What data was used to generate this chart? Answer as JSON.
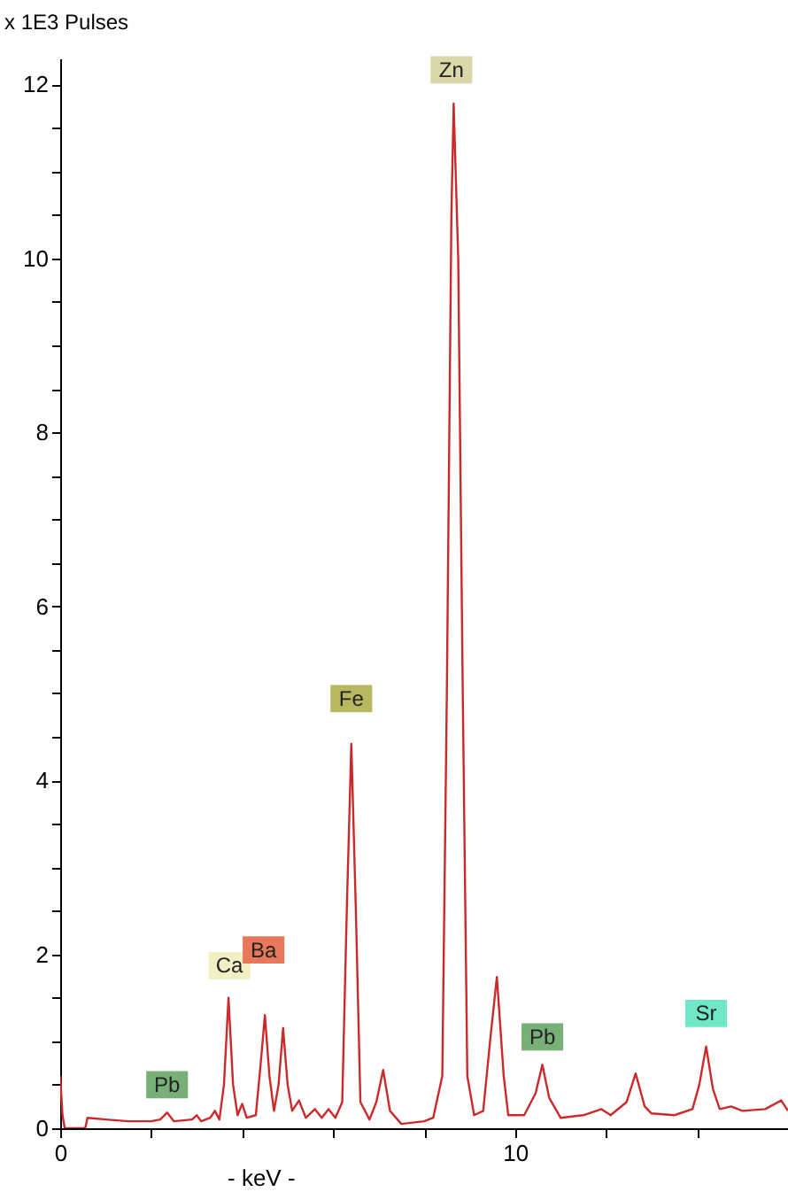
{
  "chart_data": {
    "type": "line",
    "ylabel": "x 1E3 Pulses",
    "xlabel": "- keV -",
    "x": [
      0,
      0.05,
      0.1,
      0.55,
      0.6,
      1.0,
      1.5,
      2.0,
      2.2,
      2.35,
      2.5,
      2.9,
      3.0,
      3.1,
      3.3,
      3.4,
      3.5,
      3.6,
      3.7,
      3.8,
      3.9,
      4.0,
      4.1,
      4.3,
      4.4,
      4.5,
      4.6,
      4.7,
      4.8,
      4.9,
      5.0,
      5.1,
      5.25,
      5.4,
      5.6,
      5.75,
      5.9,
      6.05,
      6.2,
      6.3,
      6.4,
      6.5,
      6.6,
      6.8,
      6.95,
      7.1,
      7.25,
      7.5,
      8.0,
      8.2,
      8.4,
      8.5,
      8.6,
      8.65,
      8.75,
      8.85,
      8.95,
      9.1,
      9.3,
      9.45,
      9.6,
      9.75,
      9.85,
      10.2,
      10.45,
      10.6,
      10.75,
      11.0,
      11.5,
      11.9,
      12.1,
      12.45,
      12.65,
      12.85,
      13.0,
      13.5,
      13.9,
      14.05,
      14.2,
      14.35,
      14.5,
      14.75,
      15.0,
      15.5,
      15.85,
      16.0
    ],
    "series": [
      {
        "color": "#cc2a2a",
        "values": [
          0.6,
          0.15,
          0.0,
          0.0,
          0.12,
          0.1,
          0.08,
          0.08,
          0.1,
          0.18,
          0.08,
          0.1,
          0.15,
          0.08,
          0.12,
          0.2,
          0.1,
          0.5,
          1.5,
          0.5,
          0.15,
          0.28,
          0.12,
          0.15,
          0.7,
          1.3,
          0.6,
          0.2,
          0.5,
          1.15,
          0.5,
          0.2,
          0.32,
          0.12,
          0.22,
          0.12,
          0.22,
          0.12,
          0.3,
          2.5,
          4.42,
          2.5,
          0.3,
          0.1,
          0.3,
          0.67,
          0.2,
          0.05,
          0.08,
          0.12,
          0.6,
          5.0,
          10.5,
          11.78,
          10.0,
          5.0,
          0.6,
          0.15,
          0.2,
          1.0,
          1.74,
          0.6,
          0.15,
          0.15,
          0.4,
          0.73,
          0.35,
          0.12,
          0.15,
          0.22,
          0.15,
          0.3,
          0.63,
          0.25,
          0.17,
          0.15,
          0.22,
          0.5,
          0.94,
          0.45,
          0.22,
          0.25,
          0.2,
          0.22,
          0.32,
          0.2
        ]
      }
    ],
    "xlim": [
      0,
      16
    ],
    "ylim": [
      0,
      12.3
    ],
    "xticks": [
      0,
      {
        "value": 2,
        "label": null
      },
      {
        "value": 4,
        "label": null
      },
      {
        "value": 6,
        "label": null
      },
      {
        "value": 8,
        "label": null
      },
      10,
      {
        "value": 12,
        "label": null
      },
      {
        "value": 14,
        "label": null
      },
      {
        "value": 16,
        "label": null
      }
    ],
    "yticks": [
      0,
      {
        "value": 0.5,
        "label": null
      },
      {
        "value": 1,
        "label": null
      },
      {
        "value": 1.5,
        "label": null
      },
      2,
      {
        "value": 2.5,
        "label": null
      },
      {
        "value": 3,
        "label": null
      },
      {
        "value": 3.5,
        "label": null
      },
      4,
      {
        "value": 4.5,
        "label": null
      },
      {
        "value": 5,
        "label": null
      },
      {
        "value": 5.5,
        "label": null
      },
      6,
      {
        "value": 6.5,
        "label": null
      },
      {
        "value": 7,
        "label": null
      },
      {
        "value": 7.5,
        "label": null
      },
      8,
      {
        "value": 8.5,
        "label": null
      },
      {
        "value": 9,
        "label": null
      },
      {
        "value": 9.5,
        "label": null
      },
      10,
      {
        "value": 10.5,
        "label": null
      },
      {
        "value": 11,
        "label": null
      },
      {
        "value": 11.5,
        "label": null
      },
      12
    ],
    "annotations": [
      {
        "text": "Zn",
        "x": 8.6,
        "y": 12.17
      },
      {
        "text": "Fe",
        "x": 6.4,
        "y": 4.94
      },
      {
        "text": "Ca",
        "x": 3.72,
        "y": 1.87
      },
      {
        "text": "Ba",
        "x": 4.47,
        "y": 2.05
      },
      {
        "text": "Pb",
        "x": 2.35,
        "y": 0.5
      },
      {
        "text": "Pb",
        "x": 10.6,
        "y": 1.05
      },
      {
        "text": "Sr",
        "x": 14.2,
        "y": 1.32
      }
    ]
  }
}
